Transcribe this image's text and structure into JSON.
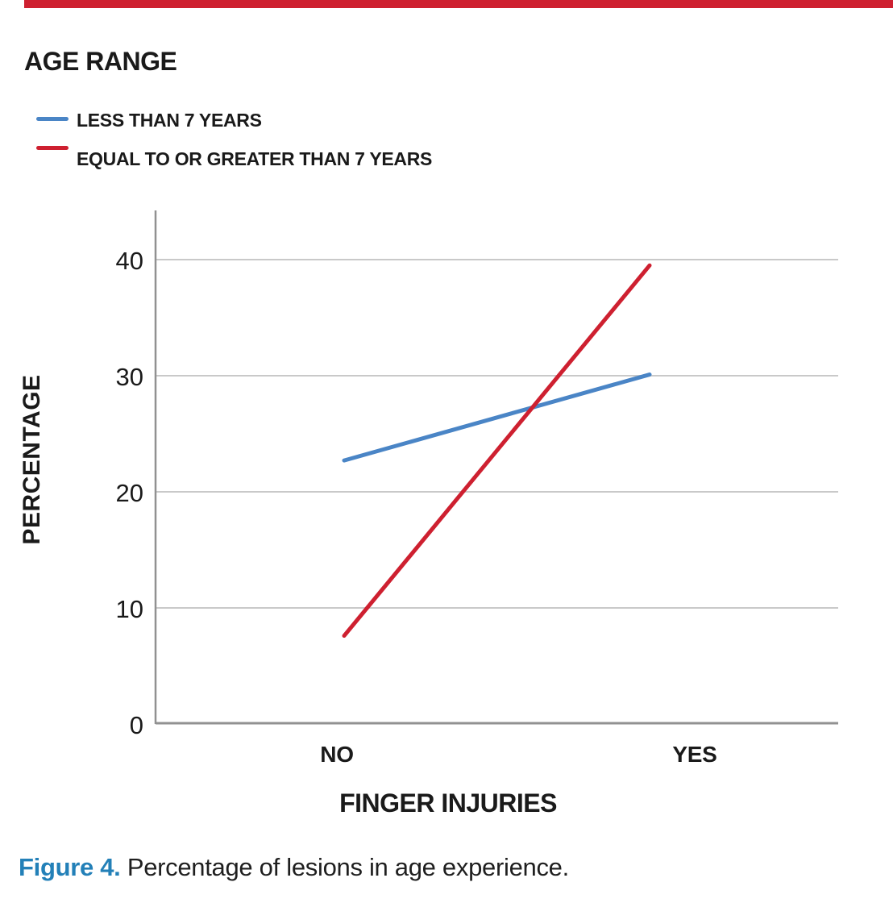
{
  "page": {
    "background": "#ffffff",
    "accent_bar_color": "#ce2030"
  },
  "chart_data": {
    "type": "line",
    "legend_title": "AGE RANGE",
    "legend_position": "top-left",
    "categories": [
      "NO",
      "YES"
    ],
    "series": [
      {
        "name": "LESS THAN 7 YEARS",
        "color": "#4a85c6",
        "values": [
          22.7,
          30.1
        ]
      },
      {
        "name": "EQUAL TO OR GREATER THAN 7 YEARS",
        "color": "#ce2030",
        "values": [
          7.6,
          39.5
        ]
      }
    ],
    "xlabel": "FINGER INJURIES",
    "ylabel": "PERCENTAGE",
    "yticks": [
      0,
      10,
      20,
      30,
      40
    ],
    "ylim": [
      0,
      44.3
    ],
    "grid": true,
    "gridline_color": "#c9c9c9",
    "axis_color": "#919191"
  },
  "caption": {
    "label": "Figure 4.",
    "text": " Percentage of lesions in age experience.",
    "label_color": "#2380b8"
  }
}
